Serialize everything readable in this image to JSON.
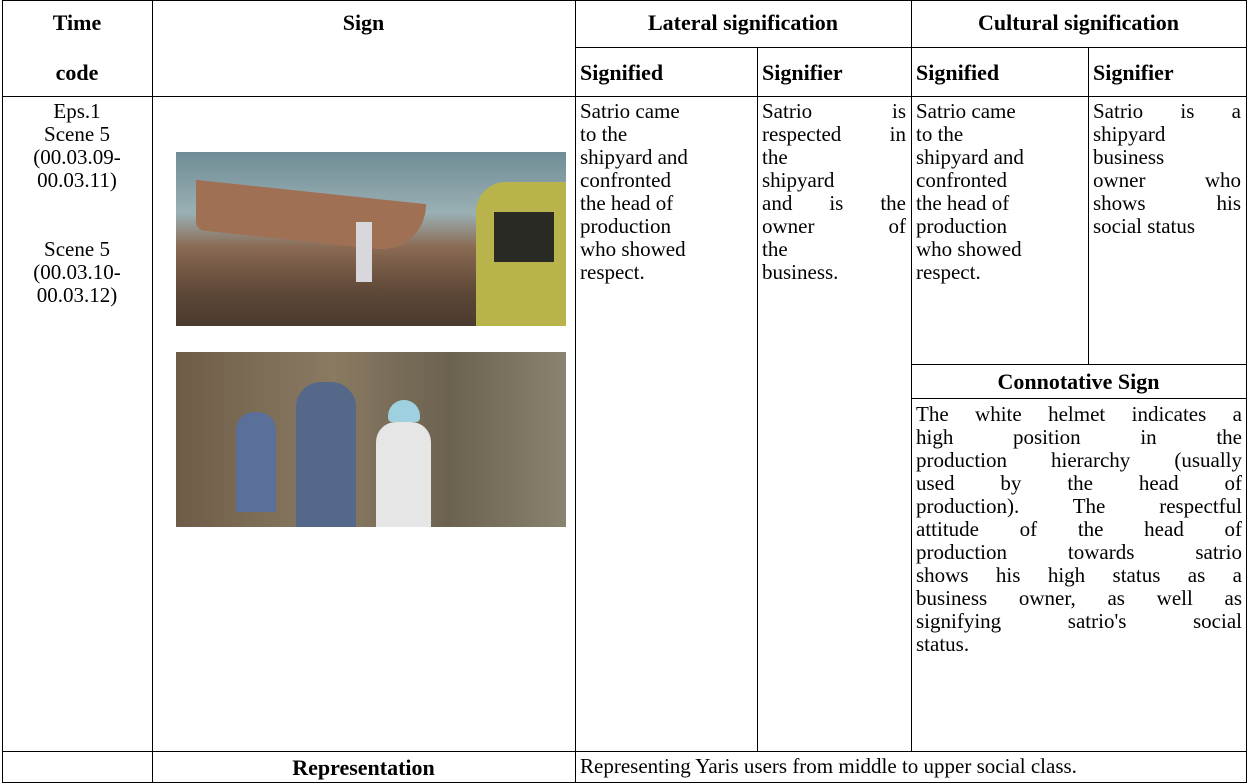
{
  "table": {
    "header": {
      "time_code": [
        "Time",
        "code"
      ],
      "sign": "Sign",
      "lateral": "Lateral signification",
      "cultural": "Cultural signification",
      "lateral_signified": "Signified",
      "lateral_signifier": "Signifier",
      "cultural_signified": "Signified",
      "cultural_signifier": "Signifier"
    },
    "row": {
      "time_blocks": [
        [
          "Eps.1",
          "Scene 5",
          "(00.03.09-",
          "00.03.11)"
        ],
        [
          "Scene 5",
          "(00.03.10-",
          "00.03.12)"
        ]
      ],
      "lateral_signified": [
        "Satrio came",
        "to the",
        "shipyard and",
        "confronted",
        "the head of",
        "production",
        "who showed",
        "respect."
      ],
      "lateral_signifier": [
        "Satrio is",
        "respected in",
        "the",
        "shipyard",
        "and is the",
        "owner of",
        "the",
        "business."
      ],
      "cultural_signified": [
        "Satrio came",
        "to the",
        "shipyard and",
        "confronted",
        "the head of",
        "production",
        "who showed",
        "respect."
      ],
      "cultural_signifier": [
        "Satrio is a",
        "shipyard",
        "business",
        "owner who",
        "shows his",
        "social status"
      ],
      "connotative_title": "Connotative Sign",
      "connotative": [
        "The white helmet indicates a",
        "high position in the",
        "production hierarchy (usually",
        "used by the head of",
        "production). The respectful",
        "attitude of the head of",
        "production towards satrio",
        "shows his high status as a",
        "business owner, as well as",
        "signifying satrio's social",
        "status."
      ]
    },
    "footer": {
      "label": "Representation",
      "text": "Representing Yaris users from middle to upper social class."
    }
  }
}
